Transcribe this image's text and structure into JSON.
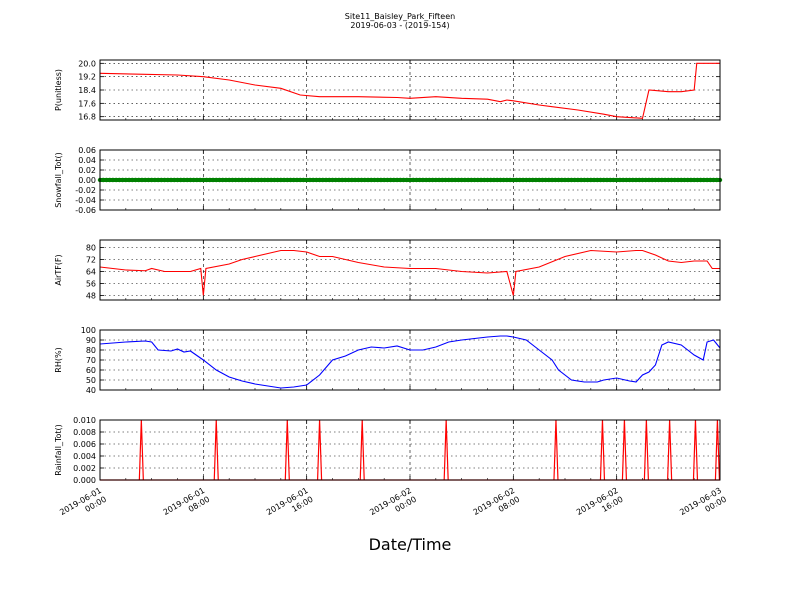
{
  "figure": {
    "title_line1": "Site11_Baisley_Park_Fifteen",
    "title_line2": "2019-06-03 - (2019-154)",
    "xlabel": "Date/Time"
  },
  "chart_data": {
    "type": "line",
    "x_range": [
      "2019-06-01 00:00",
      "2019-06-03 00:00"
    ],
    "x_ticks": [
      {
        "line1": "2019-06-01",
        "line2": "00:00",
        "hours": 0
      },
      {
        "line1": "2019-06-01",
        "line2": "08:00",
        "hours": 8
      },
      {
        "line1": "2019-06-01",
        "line2": "16:00",
        "hours": 16
      },
      {
        "line1": "2019-06-02",
        "line2": "00:00",
        "hours": 24
      },
      {
        "line1": "2019-06-02",
        "line2": "08:00",
        "hours": 32
      },
      {
        "line1": "2019-06-02",
        "line2": "16:00",
        "hours": 40
      },
      {
        "line1": "2019-06-03",
        "line2": "00:00",
        "hours": 48
      }
    ],
    "grid": true,
    "panels": [
      {
        "id": "p",
        "ylabel": "P(unitless)",
        "ylim": [
          16.6,
          20.2
        ],
        "yticks": [
          "16.8",
          "17.6",
          "18.4",
          "19.2",
          "20.0"
        ],
        "color": "#ff0000",
        "marker": "none",
        "points": [
          [
            0,
            19.4
          ],
          [
            3,
            19.35
          ],
          [
            6,
            19.3
          ],
          [
            8,
            19.2
          ],
          [
            10,
            19.0
          ],
          [
            12,
            18.7
          ],
          [
            14,
            18.5
          ],
          [
            15.5,
            18.1
          ],
          [
            17,
            18.0
          ],
          [
            20,
            18.0
          ],
          [
            23,
            17.95
          ],
          [
            24,
            17.9
          ],
          [
            26,
            18.0
          ],
          [
            28,
            17.9
          ],
          [
            30,
            17.85
          ],
          [
            31,
            17.7
          ],
          [
            31.5,
            17.8
          ],
          [
            32,
            17.75
          ],
          [
            34,
            17.5
          ],
          [
            35,
            17.4
          ],
          [
            37,
            17.2
          ],
          [
            39,
            16.95
          ],
          [
            40,
            16.8
          ],
          [
            42,
            16.7
          ],
          [
            42.5,
            18.4
          ],
          [
            44,
            18.3
          ],
          [
            45,
            18.3
          ],
          [
            46,
            18.4
          ],
          [
            46.2,
            20.0
          ],
          [
            48,
            20.0
          ]
        ]
      },
      {
        "id": "snow",
        "ylabel": "Snowfall_Tot()",
        "ylim": [
          -0.06,
          0.06
        ],
        "yticks": [
          "-0.06",
          "-0.04",
          "-0.02",
          "0.00",
          "0.02",
          "0.04",
          "0.06"
        ],
        "color": "#008000",
        "marker": "dots",
        "points": [
          [
            0,
            0
          ],
          [
            48,
            0
          ]
        ]
      },
      {
        "id": "temp",
        "ylabel": "AirTF(F)",
        "ylim": [
          45,
          85
        ],
        "yticks": [
          "48",
          "56",
          "64",
          "72",
          "80"
        ],
        "color": "#ff0000",
        "marker": "none",
        "points": [
          [
            0,
            67
          ],
          [
            2,
            65
          ],
          [
            3.5,
            64.5
          ],
          [
            4,
            66
          ],
          [
            5,
            64
          ],
          [
            7,
            64
          ],
          [
            7.8,
            66
          ],
          [
            8,
            48
          ],
          [
            8.2,
            66
          ],
          [
            10,
            69
          ],
          [
            11,
            72
          ],
          [
            12,
            74
          ],
          [
            13,
            76
          ],
          [
            14,
            78
          ],
          [
            15,
            78
          ],
          [
            16,
            77
          ],
          [
            17,
            74
          ],
          [
            18,
            74
          ],
          [
            20,
            70
          ],
          [
            22,
            67
          ],
          [
            24,
            66
          ],
          [
            26,
            66
          ],
          [
            28,
            64
          ],
          [
            30,
            63
          ],
          [
            31.5,
            64
          ],
          [
            32,
            48
          ],
          [
            32.2,
            64
          ],
          [
            34,
            67
          ],
          [
            36,
            74
          ],
          [
            38,
            78
          ],
          [
            40,
            77
          ],
          [
            41.5,
            78
          ],
          [
            42,
            78
          ],
          [
            43,
            75
          ],
          [
            44,
            71
          ],
          [
            45,
            70
          ],
          [
            46,
            71
          ],
          [
            47,
            71
          ],
          [
            47.4,
            66
          ],
          [
            48,
            66
          ]
        ]
      },
      {
        "id": "rh",
        "ylabel": "RH(%)",
        "ylim": [
          40,
          100
        ],
        "yticks": [
          "40",
          "50",
          "60",
          "70",
          "80",
          "90",
          "100"
        ],
        "color": "#0000ff",
        "marker": "none",
        "points": [
          [
            0,
            86
          ],
          [
            2,
            88
          ],
          [
            3.5,
            89
          ],
          [
            4,
            88
          ],
          [
            4.5,
            80
          ],
          [
            5.5,
            79
          ],
          [
            6,
            81
          ],
          [
            6.5,
            78
          ],
          [
            7,
            79
          ],
          [
            8,
            70
          ],
          [
            9,
            60
          ],
          [
            10,
            53
          ],
          [
            11,
            49
          ],
          [
            12,
            46
          ],
          [
            13,
            44
          ],
          [
            14,
            42
          ],
          [
            15,
            43
          ],
          [
            16,
            45
          ],
          [
            17,
            55
          ],
          [
            18,
            70
          ],
          [
            19,
            74
          ],
          [
            20,
            80
          ],
          [
            21,
            83
          ],
          [
            22,
            82
          ],
          [
            23,
            84
          ],
          [
            24,
            80
          ],
          [
            25,
            80
          ],
          [
            26,
            83
          ],
          [
            27,
            88
          ],
          [
            28,
            90
          ],
          [
            30,
            93
          ],
          [
            31,
            94
          ],
          [
            31.5,
            94
          ],
          [
            32,
            93
          ],
          [
            33,
            90
          ],
          [
            34,
            80
          ],
          [
            35,
            70
          ],
          [
            35.5,
            60
          ],
          [
            36.5,
            50
          ],
          [
            37.5,
            48
          ],
          [
            38.5,
            48
          ],
          [
            39,
            50
          ],
          [
            40,
            52
          ],
          [
            41,
            49
          ],
          [
            41.5,
            48
          ],
          [
            42,
            55
          ],
          [
            42.5,
            58
          ],
          [
            43,
            65
          ],
          [
            43.5,
            85
          ],
          [
            44,
            88
          ],
          [
            45,
            85
          ],
          [
            45.5,
            80
          ],
          [
            46,
            75
          ],
          [
            46.7,
            70
          ],
          [
            47,
            88
          ],
          [
            47.5,
            90
          ],
          [
            48,
            82
          ]
        ]
      },
      {
        "id": "rain",
        "ylabel": "Rainfall_Tot()",
        "ylim": [
          0,
          0.01
        ],
        "yticks": [
          "0.000",
          "0.002",
          "0.004",
          "0.006",
          "0.008",
          "0.010"
        ],
        "color": "#ff0000",
        "marker": "none",
        "spikes": [
          3.2,
          9,
          14.5,
          17,
          20.3,
          26.8,
          35.3,
          38.9,
          40.6,
          42.3,
          44.1,
          46.1,
          47.8
        ],
        "spike_value": 0.01
      }
    ]
  }
}
